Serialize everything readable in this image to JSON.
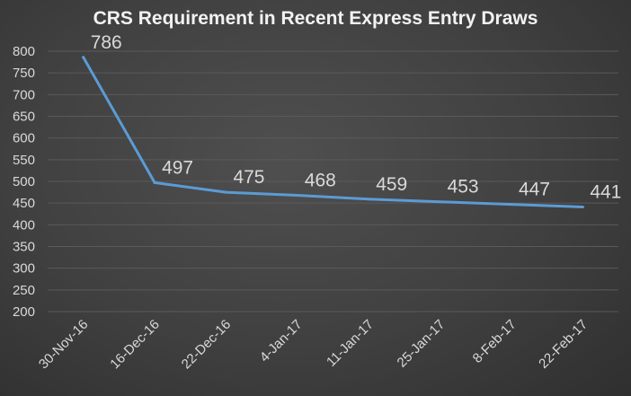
{
  "chart_data": {
    "type": "line",
    "title": "CRS Requirement in Recent Express Entry Draws",
    "xlabel": "",
    "ylabel": "",
    "categories": [
      "30-Nov-16",
      "16-Dec-16",
      "22-Dec-16",
      "4-Jan-17",
      "11-Jan-17",
      "25-Jan-17",
      "8-Feb-17",
      "22-Feb-17"
    ],
    "series": [
      {
        "values": [
          786,
          497,
          475,
          468,
          459,
          453,
          447,
          441
        ],
        "color": "#5b9bd5"
      }
    ],
    "ylim": [
      200,
      800
    ],
    "yticks": [
      "200",
      "250",
      "300",
      "350",
      "400",
      "450",
      "500",
      "550",
      "600",
      "650",
      "700",
      "750",
      "800"
    ],
    "data_labels": [
      "786",
      "497",
      "475",
      "468",
      "459",
      "453",
      "447",
      "441"
    ],
    "grid": true,
    "legend": "none",
    "colors": {
      "background": "#404040",
      "gridline": "#5a5a5a",
      "text": "#d9d9d9",
      "title": "#f2f2f2"
    }
  }
}
